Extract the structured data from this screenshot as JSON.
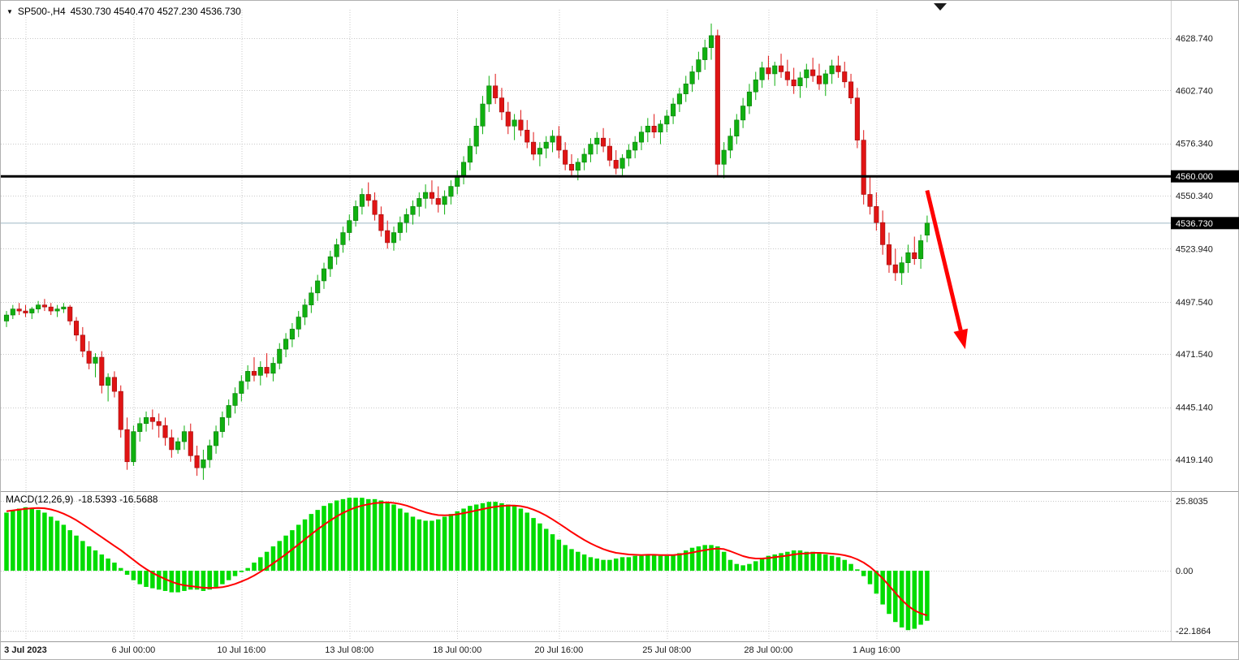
{
  "header": {
    "symbol_period": "SP500-,H4",
    "open": "4530.730",
    "high": "4540.470",
    "low": "4527.230",
    "close": "4536.730",
    "ohlc_text": "4530.730 4540.470 4527.230 4536.730"
  },
  "macd_panel": {
    "label": "MACD(12,26,9)",
    "macd_value": "-18.5393",
    "signal_value": "-16.5688",
    "values_text": "-18.5393 -16.5688"
  },
  "colors": {
    "bull": "#10b010",
    "bull_edge": "#0a7a0a",
    "bear": "#e01414",
    "bear_edge": "#9c0e0e",
    "histogram": "#00dc00",
    "signal": "#ff0000",
    "grid": "#c9c9c9",
    "hline": "#000000",
    "last_price_line": "#9fb6c4",
    "badge_bg": "#000000",
    "badge_fg": "#ffffff",
    "arrow": "#ff0000"
  },
  "chart_data": [
    {
      "type": "candlestick",
      "title": "SP500-,H4",
      "ylim": [
        4405,
        4645
      ],
      "grid": true,
      "y_ticks": [
        {
          "value": 4628.74,
          "label": "4628.740"
        },
        {
          "value": 4602.74,
          "label": "4602.740"
        },
        {
          "value": 4576.34,
          "label": "4576.340"
        },
        {
          "value": 4550.34,
          "label": "4550.340"
        },
        {
          "value": 4523.94,
          "label": "4523.940"
        },
        {
          "value": 4497.54,
          "label": "4497.540"
        },
        {
          "value": 4471.54,
          "label": "4471.540"
        },
        {
          "value": 4445.14,
          "label": "4445.140"
        },
        {
          "value": 4419.14,
          "label": "4419.140"
        }
      ],
      "hline": {
        "value": 4560.0,
        "label": "4560.000"
      },
      "last_price": {
        "value": 4536.73,
        "label": "4536.730"
      },
      "x_ticks": [
        {
          "label": "3 Jul 2023",
          "bar": 3,
          "bold": true
        },
        {
          "label": "6 Jul 00:00",
          "bar": 20
        },
        {
          "label": "10 Jul 16:00",
          "bar": 37
        },
        {
          "label": "13 Jul 08:00",
          "bar": 54
        },
        {
          "label": "18 Jul 00:00",
          "bar": 71
        },
        {
          "label": "20 Jul 16:00",
          "bar": 87
        },
        {
          "label": "25 Jul 08:00",
          "bar": 104
        },
        {
          "label": "28 Jul 00:00",
          "bar": 120
        },
        {
          "label": "1 Aug 16:00",
          "bar": 137
        }
      ],
      "annotations": [
        {
          "type": "arrow",
          "color": "#ff0000",
          "from_bar": 145,
          "from_price": 4553,
          "to_bar": 151,
          "to_price": 4474
        }
      ],
      "candles": [
        [
          4488,
          4493,
          4485,
          4491
        ],
        [
          4491,
          4496,
          4489,
          4494
        ],
        [
          4494,
          4497,
          4491,
          4493
        ],
        [
          4493,
          4496,
          4490,
          4492
        ],
        [
          4492,
          4495,
          4489,
          4494
        ],
        [
          4494,
          4498,
          4492,
          4496
        ],
        [
          4496,
          4499,
          4493,
          4495
        ],
        [
          4495,
          4497,
          4491,
          4493
        ],
        [
          4493,
          4496,
          4490,
          4494
        ],
        [
          4494,
          4497,
          4492,
          4495
        ],
        [
          4495,
          4496,
          4486,
          4488
        ],
        [
          4488,
          4490,
          4478,
          4481
        ],
        [
          4481,
          4485,
          4470,
          4473
        ],
        [
          4473,
          4478,
          4464,
          4467
        ],
        [
          4467,
          4472,
          4460,
          4470
        ],
        [
          4470,
          4473,
          4452,
          4456
        ],
        [
          4456,
          4462,
          4448,
          4460
        ],
        [
          4460,
          4463,
          4450,
          4453
        ],
        [
          4453,
          4456,
          4430,
          4434
        ],
        [
          4434,
          4440,
          4414,
          4418
        ],
        [
          4418,
          4436,
          4416,
          4433
        ],
        [
          4433,
          4440,
          4428,
          4437
        ],
        [
          4437,
          4443,
          4433,
          4440
        ],
        [
          4440,
          4444,
          4434,
          4438
        ],
        [
          4438,
          4442,
          4430,
          4436
        ],
        [
          4436,
          4440,
          4426,
          4430
        ],
        [
          4430,
          4434,
          4420,
          4424
        ],
        [
          4424,
          4430,
          4422,
          4428
        ],
        [
          4428,
          4436,
          4424,
          4433
        ],
        [
          4433,
          4437,
          4418,
          4421
        ],
        [
          4421,
          4426,
          4411,
          4415
        ],
        [
          4415,
          4424,
          4409,
          4419
        ],
        [
          4419,
          4429,
          4415,
          4426
        ],
        [
          4426,
          4436,
          4422,
          4433
        ],
        [
          4433,
          4443,
          4430,
          4440
        ],
        [
          4440,
          4449,
          4436,
          4446
        ],
        [
          4446,
          4455,
          4442,
          4452
        ],
        [
          4452,
          4461,
          4448,
          4458
        ],
        [
          4458,
          4466,
          4454,
          4463
        ],
        [
          4463,
          4470,
          4458,
          4461
        ],
        [
          4461,
          4468,
          4456,
          4465
        ],
        [
          4465,
          4472,
          4460,
          4462
        ],
        [
          4462,
          4470,
          4458,
          4467
        ],
        [
          4467,
          4477,
          4464,
          4474
        ],
        [
          4474,
          4482,
          4470,
          4479
        ],
        [
          4479,
          4487,
          4475,
          4484
        ],
        [
          4484,
          4493,
          4480,
          4490
        ],
        [
          4490,
          4499,
          4486,
          4496
        ],
        [
          4496,
          4505,
          4492,
          4502
        ],
        [
          4502,
          4511,
          4498,
          4508
        ],
        [
          4508,
          4517,
          4504,
          4514
        ],
        [
          4514,
          4523,
          4510,
          4520
        ],
        [
          4520,
          4529,
          4516,
          4526
        ],
        [
          4526,
          4535,
          4522,
          4532
        ],
        [
          4532,
          4541,
          4528,
          4538
        ],
        [
          4538,
          4548,
          4535,
          4545
        ],
        [
          4545,
          4554,
          4541,
          4551
        ],
        [
          4551,
          4557,
          4545,
          4548
        ],
        [
          4548,
          4552,
          4538,
          4541
        ],
        [
          4541,
          4545,
          4530,
          4533
        ],
        [
          4533,
          4538,
          4524,
          4527
        ],
        [
          4527,
          4535,
          4523,
          4532
        ],
        [
          4532,
          4540,
          4528,
          4537
        ],
        [
          4537,
          4544,
          4532,
          4541
        ],
        [
          4541,
          4548,
          4536,
          4545
        ],
        [
          4545,
          4552,
          4540,
          4549
        ],
        [
          4549,
          4556,
          4544,
          4552
        ],
        [
          4552,
          4558,
          4546,
          4549
        ],
        [
          4549,
          4555,
          4542,
          4546
        ],
        [
          4546,
          4553,
          4541,
          4550
        ],
        [
          4550,
          4558,
          4546,
          4555
        ],
        [
          4555,
          4563,
          4551,
          4560
        ],
        [
          4560,
          4570,
          4556,
          4567
        ],
        [
          4567,
          4579,
          4563,
          4575
        ],
        [
          4575,
          4589,
          4571,
          4585
        ],
        [
          4585,
          4600,
          4581,
          4596
        ],
        [
          4596,
          4610,
          4592,
          4605
        ],
        [
          4605,
          4611,
          4596,
          4599
        ],
        [
          4599,
          4604,
          4588,
          4592
        ],
        [
          4592,
          4597,
          4581,
          4585
        ],
        [
          4585,
          4591,
          4578,
          4588
        ],
        [
          4588,
          4593,
          4580,
          4583
        ],
        [
          4583,
          4588,
          4574,
          4577
        ],
        [
          4577,
          4582,
          4568,
          4571
        ],
        [
          4571,
          4577,
          4565,
          4574
        ],
        [
          4574,
          4580,
          4569,
          4577
        ],
        [
          4577,
          4583,
          4572,
          4580
        ],
        [
          4580,
          4585,
          4569,
          4573
        ],
        [
          4573,
          4577,
          4563,
          4566
        ],
        [
          4566,
          4571,
          4560,
          4563
        ],
        [
          4563,
          4569,
          4558,
          4567
        ],
        [
          4567,
          4574,
          4563,
          4571
        ],
        [
          4571,
          4579,
          4567,
          4576
        ],
        [
          4576,
          4582,
          4571,
          4579
        ],
        [
          4579,
          4584,
          4572,
          4575
        ],
        [
          4575,
          4579,
          4565,
          4568
        ],
        [
          4568,
          4573,
          4561,
          4564
        ],
        [
          4564,
          4571,
          4560,
          4569
        ],
        [
          4569,
          4576,
          4565,
          4573
        ],
        [
          4573,
          4580,
          4569,
          4577
        ],
        [
          4577,
          4585,
          4573,
          4582
        ],
        [
          4582,
          4589,
          4577,
          4585
        ],
        [
          4585,
          4591,
          4579,
          4582
        ],
        [
          4582,
          4588,
          4576,
          4586
        ],
        [
          4586,
          4593,
          4582,
          4590
        ],
        [
          4590,
          4599,
          4586,
          4596
        ],
        [
          4596,
          4604,
          4592,
          4601
        ],
        [
          4601,
          4610,
          4597,
          4606
        ],
        [
          4606,
          4615,
          4602,
          4612
        ],
        [
          4612,
          4622,
          4608,
          4618
        ],
        [
          4618,
          4628,
          4613,
          4624
        ],
        [
          4624,
          4636,
          4618,
          4630
        ],
        [
          4630,
          4633,
          4560,
          4566
        ],
        [
          4566,
          4577,
          4559,
          4573
        ],
        [
          4573,
          4584,
          4569,
          4580
        ],
        [
          4580,
          4591,
          4576,
          4588
        ],
        [
          4588,
          4599,
          4584,
          4595
        ],
        [
          4595,
          4606,
          4591,
          4602
        ],
        [
          4602,
          4612,
          4598,
          4608
        ],
        [
          4608,
          4617,
          4604,
          4614
        ],
        [
          4614,
          4620,
          4608,
          4611
        ],
        [
          4611,
          4617,
          4605,
          4615
        ],
        [
          4615,
          4621,
          4609,
          4612
        ],
        [
          4612,
          4618,
          4605,
          4608
        ],
        [
          4608,
          4614,
          4601,
          4605
        ],
        [
          4605,
          4612,
          4599,
          4609
        ],
        [
          4609,
          4616,
          4604,
          4613
        ],
        [
          4613,
          4619,
          4607,
          4610
        ],
        [
          4610,
          4616,
          4603,
          4606
        ],
        [
          4606,
          4613,
          4600,
          4611
        ],
        [
          4611,
          4618,
          4606,
          4615
        ],
        [
          4615,
          4620,
          4609,
          4612
        ],
        [
          4612,
          4617,
          4604,
          4607
        ],
        [
          4607,
          4611,
          4596,
          4599
        ],
        [
          4599,
          4604,
          4574,
          4578
        ],
        [
          4578,
          4583,
          4546,
          4551
        ],
        [
          4551,
          4560,
          4541,
          4545
        ],
        [
          4545,
          4552,
          4533,
          4537
        ],
        [
          4537,
          4543,
          4521,
          4526
        ],
        [
          4526,
          4532,
          4512,
          4516
        ],
        [
          4516,
          4524,
          4508,
          4512
        ],
        [
          4512,
          4520,
          4506,
          4517
        ],
        [
          4517,
          4526,
          4512,
          4522
        ],
        [
          4522,
          4530,
          4516,
          4519
        ],
        [
          4519,
          4531,
          4514,
          4528
        ],
        [
          4530.73,
          4540.47,
          4527.23,
          4536.73
        ]
      ]
    },
    {
      "type": "macd",
      "label": "MACD(12,26,9)",
      "params": [
        12,
        26,
        9
      ],
      "last_macd": -18.5393,
      "last_signal": -16.5688,
      "ylim": [
        -24,
        27.5
      ],
      "y_ticks": [
        {
          "value": 25.8035,
          "label": "25.8035"
        },
        {
          "value": 0,
          "label": "0.00"
        },
        {
          "value": -22.1864,
          "label": "-22.1864"
        }
      ],
      "histogram": [
        21.5,
        22.5,
        23,
        23.5,
        23,
        22.5,
        21.5,
        20,
        18.5,
        17,
        15,
        13,
        11,
        9,
        7.5,
        6,
        4.5,
        3,
        1,
        -1.5,
        -3.5,
        -5,
        -6,
        -6.5,
        -7,
        -7.5,
        -8,
        -8,
        -7.5,
        -7,
        -7,
        -7.5,
        -7,
        -6,
        -5,
        -3.5,
        -2,
        -0.5,
        1,
        3,
        5,
        7,
        9,
        11,
        13,
        15,
        17,
        19,
        21,
        22.5,
        24,
        25,
        26,
        26.5,
        27,
        27,
        27,
        26.5,
        26.5,
        26,
        25.5,
        24.5,
        23,
        21.5,
        20,
        19,
        18.5,
        18.5,
        19,
        20,
        21,
        22,
        23,
        24,
        24.5,
        25,
        25.5,
        25.5,
        25,
        24.5,
        24,
        23,
        21.5,
        19.5,
        17.5,
        15.5,
        13.5,
        11.5,
        9.5,
        8,
        7,
        6,
        5,
        4.5,
        4,
        4,
        4.5,
        5,
        5,
        5.5,
        5.5,
        6,
        6,
        5.5,
        5.5,
        6,
        6.5,
        7.5,
        8.5,
        9,
        9.5,
        9.5,
        9,
        7,
        4,
        2.5,
        2,
        2.5,
        3.5,
        4.5,
        5.5,
        6,
        6.5,
        7,
        7.5,
        7.5,
        7,
        7,
        6.5,
        6,
        5.5,
        5,
        4,
        2.5,
        0.5,
        -2,
        -5,
        -8.5,
        -12.5,
        -16,
        -19,
        -21,
        -22,
        -21.5,
        -20,
        -18.5393
      ],
      "signal": [
        22,
        22.3,
        22.6,
        22.9,
        23.1,
        23.2,
        23.1,
        22.7,
        22,
        21.1,
        20,
        18.7,
        17.2,
        15.6,
        14,
        12.4,
        10.8,
        9.2,
        7.6,
        5.8,
        4,
        2.2,
        0.6,
        -0.8,
        -2,
        -3.1,
        -4.1,
        -4.9,
        -5.4,
        -5.7,
        -6,
        -6.3,
        -6.4,
        -6.3,
        -6.1,
        -5.6,
        -4.9,
        -4,
        -3,
        -1.8,
        -0.4,
        1.1,
        2.7,
        4.4,
        6.1,
        7.9,
        9.7,
        11.6,
        13.5,
        15.3,
        17,
        18.6,
        20.1,
        21.4,
        22.5,
        23.4,
        24.1,
        24.6,
        25,
        25.2,
        25.3,
        25.1,
        24.7,
        24.1,
        23.3,
        22.4,
        21.6,
        21,
        20.6,
        20.5,
        20.6,
        20.9,
        21.3,
        21.8,
        22.3,
        22.8,
        23.3,
        23.7,
        24,
        24.1,
        24.1,
        23.9,
        23.4,
        22.6,
        21.6,
        20.4,
        19,
        17.5,
        15.9,
        14.3,
        12.8,
        11.4,
        10.1,
        9,
        8,
        7.2,
        6.6,
        6.3,
        6,
        5.9,
        5.8,
        5.9,
        5.9,
        5.8,
        5.8,
        5.8,
        6,
        6.3,
        6.7,
        7.2,
        7.6,
        8,
        8.2,
        8,
        7.2,
        6.3,
        5.4,
        4.8,
        4.5,
        4.5,
        4.7,
        5,
        5.3,
        5.6,
        6,
        6.3,
        6.4,
        6.6,
        6.6,
        6.5,
        6.3,
        6.1,
        5.7,
        5.1,
        4.2,
        3,
        1.4,
        -0.6,
        -2.9,
        -5.5,
        -8.2,
        -10.8,
        -13,
        -14.7,
        -15.8,
        -16.5688
      ]
    }
  ]
}
